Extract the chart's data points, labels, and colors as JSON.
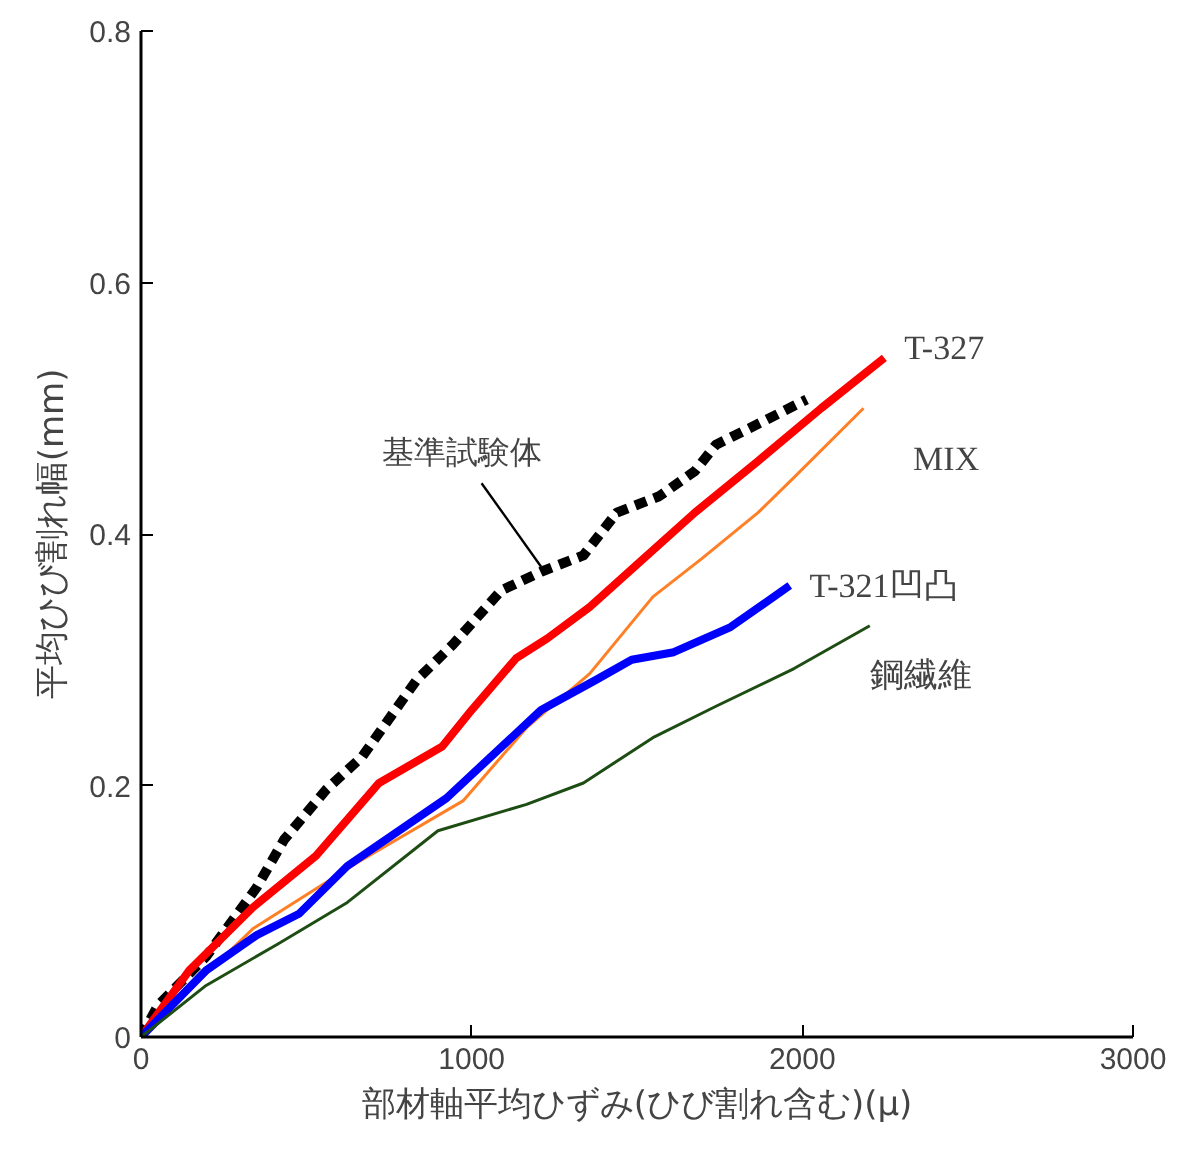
{
  "chart_data": {
    "type": "line",
    "xlabel": "部材軸平均ひずみ(ひび割れ含む)(μ)",
    "ylabel": "平均ひび割れ幅(mm)",
    "xlim": [
      0,
      3000
    ],
    "xticks": [
      0,
      1000,
      2000,
      3000
    ],
    "ylim": [
      0,
      0.8
    ],
    "yticks": [
      0,
      0.2,
      0.4,
      0.6,
      0.8
    ],
    "grid": false,
    "marker": "none",
    "series": [
      {
        "name": "基準試験体",
        "color": "#000000",
        "line_style": "dashed",
        "x": [
          0,
          51,
          197,
          350,
          433,
          561,
          669,
          834,
          943,
          1089,
          1210,
          1338,
          1439,
          1567,
          1675,
          1739,
          1885,
          2013
        ],
        "values": [
          0,
          0.025,
          0.064,
          0.119,
          0.157,
          0.197,
          0.223,
          0.284,
          0.312,
          0.355,
          0.37,
          0.383,
          0.417,
          0.43,
          0.45,
          0.471,
          0.49,
          0.507
        ]
      },
      {
        "name": "T-327",
        "color": "#ff0000",
        "line_style": "solid",
        "x": [
          0,
          146,
          338,
          529,
          720,
          911,
          1000,
          1134,
          1229,
          1357,
          1484,
          1675,
          1866,
          2057,
          2248
        ],
        "values": [
          0,
          0.053,
          0.103,
          0.144,
          0.202,
          0.231,
          0.26,
          0.301,
          0.317,
          0.342,
          0.372,
          0.417,
          0.458,
          0.5,
          0.54
        ]
      },
      {
        "name": "MIX",
        "color": "#ff7f27",
        "line_style": "solid",
        "x": [
          0,
          338,
          656,
          975,
          1166,
          1357,
          1548,
          1694,
          1866,
          1975,
          2185
        ],
        "values": [
          0,
          0.086,
          0.139,
          0.188,
          0.246,
          0.289,
          0.35,
          0.38,
          0.417,
          0.445,
          0.5
        ]
      },
      {
        "name": "T-321凹凸",
        "color": "#0000ff",
        "line_style": "solid",
        "x": [
          0,
          197,
          350,
          478,
          624,
          924,
          1210,
          1376,
          1484,
          1611,
          1783,
          1962
        ],
        "values": [
          0,
          0.053,
          0.081,
          0.098,
          0.136,
          0.19,
          0.26,
          0.284,
          0.3,
          0.306,
          0.326,
          0.359
        ]
      },
      {
        "name": "鋼繊維",
        "color": "#1e4d14",
        "line_style": "solid",
        "x": [
          0,
          197,
          414,
          624,
          898,
          1166,
          1338,
          1548,
          1739,
          1975,
          2204
        ],
        "values": [
          0,
          0.041,
          0.074,
          0.107,
          0.164,
          0.185,
          0.202,
          0.238,
          0.263,
          0.293,
          0.327
        ]
      }
    ]
  }
}
